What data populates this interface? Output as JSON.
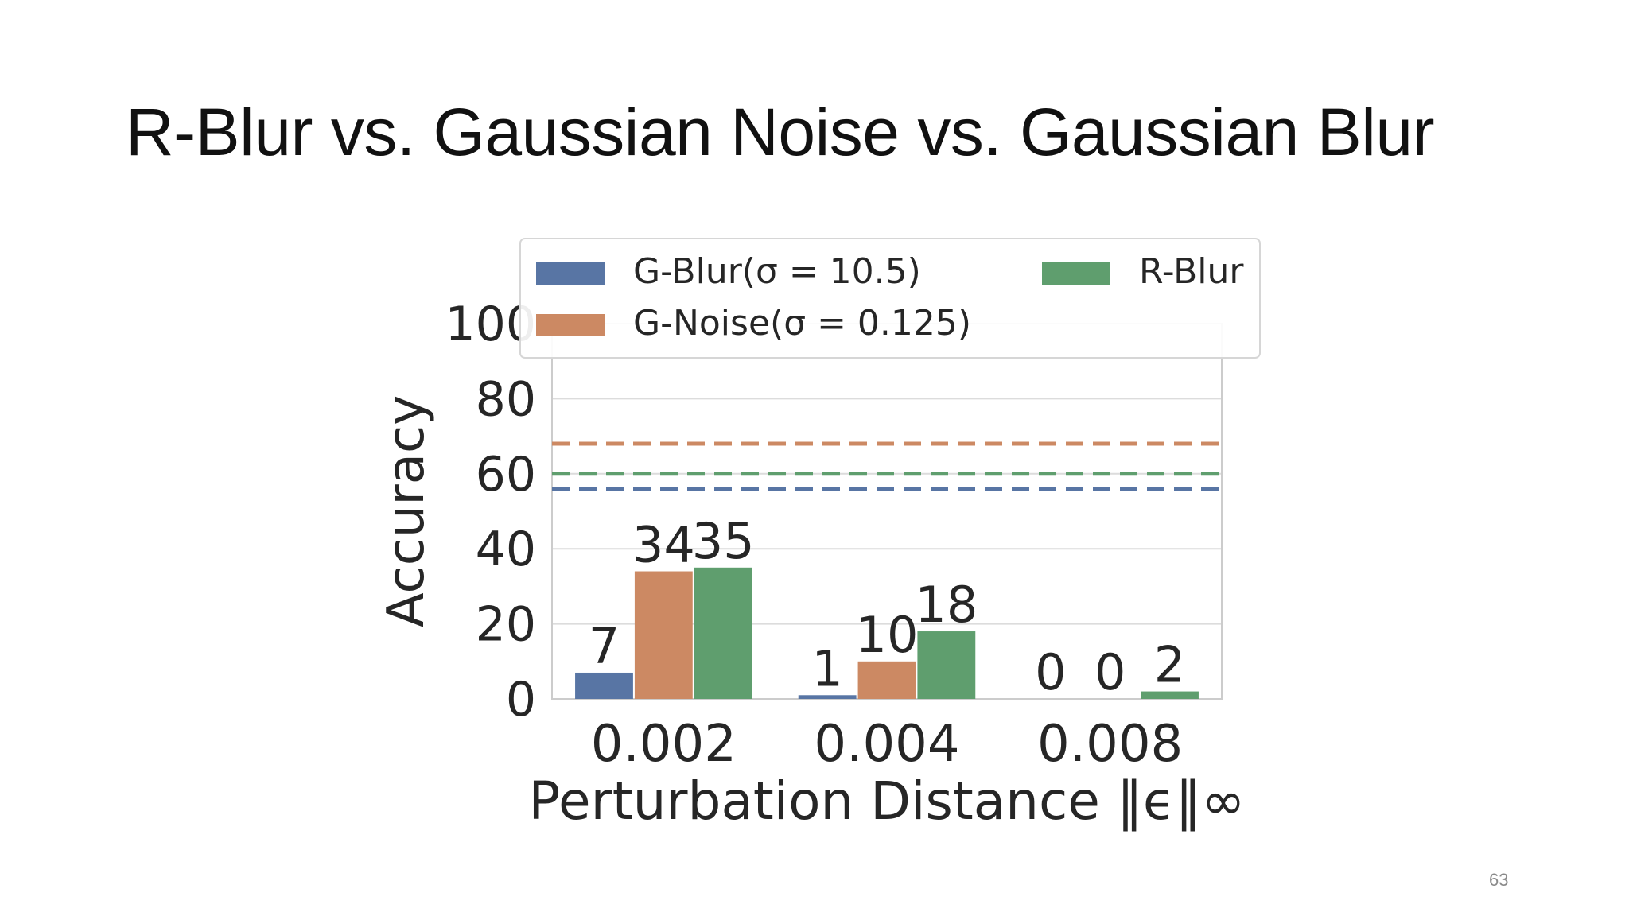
{
  "slide": {
    "title": "R-Blur vs. Gaussian Noise vs. Gaussian Blur",
    "page_number": "63"
  },
  "chart_data": {
    "type": "bar",
    "categories": [
      "0.002",
      "0.004",
      "0.008"
    ],
    "series": [
      {
        "name": "G-Blur(σ = 10.5)",
        "color": "#5875a4",
        "values": [
          7,
          1,
          0
        ],
        "labels": [
          "7",
          "1",
          "0"
        ],
        "baseline": 56
      },
      {
        "name": "G-Noise(σ = 0.125)",
        "color": "#cc8963",
        "values": [
          34,
          10,
          0
        ],
        "labels": [
          "34",
          "10",
          "0"
        ],
        "baseline": 68
      },
      {
        "name": "R-Blur",
        "color": "#5f9e6e",
        "values": [
          35,
          18,
          2
        ],
        "labels": [
          "35",
          "18",
          "2"
        ],
        "baseline": 60
      }
    ],
    "xlabel": "Perturbation Distance ‖ϵ‖∞",
    "ylabel": "Accuracy",
    "ylim": [
      0,
      100
    ],
    "yticks": [
      "0",
      "20",
      "40",
      "60",
      "80",
      "100"
    ],
    "grid": true,
    "legend_position": "top"
  }
}
